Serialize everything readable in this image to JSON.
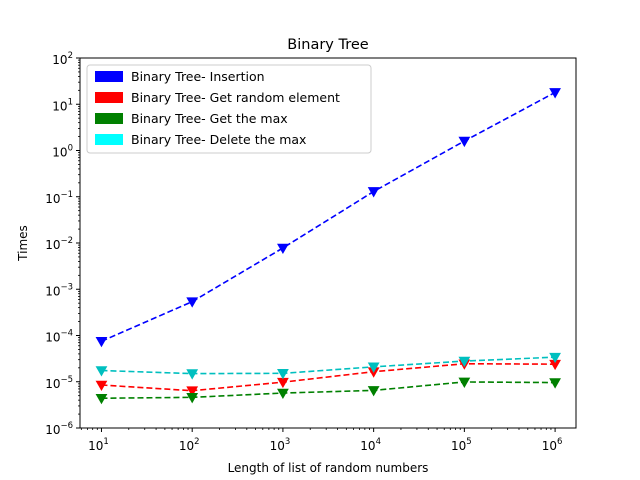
{
  "chart_data": {
    "type": "line",
    "title": "Binary Tree",
    "xlabel": "Length of list of random numbers",
    "ylabel": "Times",
    "x_scale": "log",
    "y_scale": "log",
    "x": [
      10,
      100,
      1000,
      10000,
      100000,
      1000000
    ],
    "xlim": [
      5.8,
      1700000
    ],
    "ylim": [
      1e-06,
      100
    ],
    "x_tick_labels": [
      {
        "base": "10",
        "exp": "1"
      },
      {
        "base": "10",
        "exp": "2"
      },
      {
        "base": "10",
        "exp": "3"
      },
      {
        "base": "10",
        "exp": "4"
      },
      {
        "base": "10",
        "exp": "5"
      },
      {
        "base": "10",
        "exp": "6"
      }
    ],
    "y_tick_labels": [
      {
        "base": "10",
        "exp": "−6"
      },
      {
        "base": "10",
        "exp": "−5"
      },
      {
        "base": "10",
        "exp": "−4"
      },
      {
        "base": "10",
        "exp": "−3"
      },
      {
        "base": "10",
        "exp": "−2"
      },
      {
        "base": "10",
        "exp": "−1"
      },
      {
        "base": "10",
        "exp": "0"
      },
      {
        "base": "10",
        "exp": "1"
      },
      {
        "base": "10",
        "exp": "2"
      }
    ],
    "grid": false,
    "legend_position": "top-left",
    "line_style": "dashed",
    "marker": "triangle-down",
    "series": [
      {
        "name": "Binary Tree- Insertion",
        "color": "#0000ff",
        "values": [
          7.5e-05,
          0.00054,
          0.0078,
          0.13,
          1.6,
          18
        ]
      },
      {
        "name": "Binary Tree- Get random element",
        "color": "#ff0000",
        "values": [
          8.5e-06,
          6.4e-06,
          9.8e-06,
          1.65e-05,
          2.45e-05,
          2.4e-05
        ]
      },
      {
        "name": "Binary Tree- Get the max",
        "color": "#008000",
        "values": [
          4.4e-06,
          4.6e-06,
          5.7e-06,
          6.5e-06,
          9.9e-06,
          9.6e-06
        ]
      },
      {
        "name": "Binary Tree- Delete the max",
        "color": "#00ffff",
        "line_color": "#00bfbf",
        "values": [
          1.75e-05,
          1.5e-05,
          1.52e-05,
          2.1e-05,
          2.8e-05,
          3.4e-05
        ]
      }
    ]
  }
}
